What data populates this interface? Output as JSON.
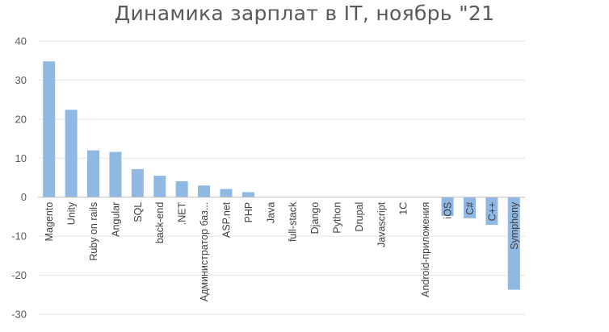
{
  "chart_data": {
    "type": "bar",
    "title": "Динамика зарплат в IT, ноябрь \"21",
    "xlabel": "",
    "ylabel": "",
    "ylim": [
      -30,
      40
    ],
    "yticks": [
      40,
      30,
      20,
      10,
      0,
      -10,
      -20,
      -30
    ],
    "grid": true,
    "legend": "none",
    "bar_color": "#8fb8e2",
    "categories": [
      "Magento",
      "Unity",
      "Ruby on rails",
      "Angular",
      "SQL",
      "back-end",
      ".NET",
      "Администратор баз...",
      "ASP.net",
      "PHP",
      "Java",
      "full-stack",
      "Django",
      "Python",
      "Drupal",
      "Javascript",
      "1C",
      "Android-приложения",
      "iOS",
      "C#",
      "C++",
      "Symphony"
    ],
    "values": [
      34.8,
      22.4,
      12.0,
      11.6,
      7.2,
      5.5,
      4.1,
      3.0,
      2.1,
      1.3,
      0,
      0,
      0,
      0,
      0,
      0,
      0,
      0,
      -4.8,
      -5.4,
      -7.1,
      -23.7
    ]
  }
}
